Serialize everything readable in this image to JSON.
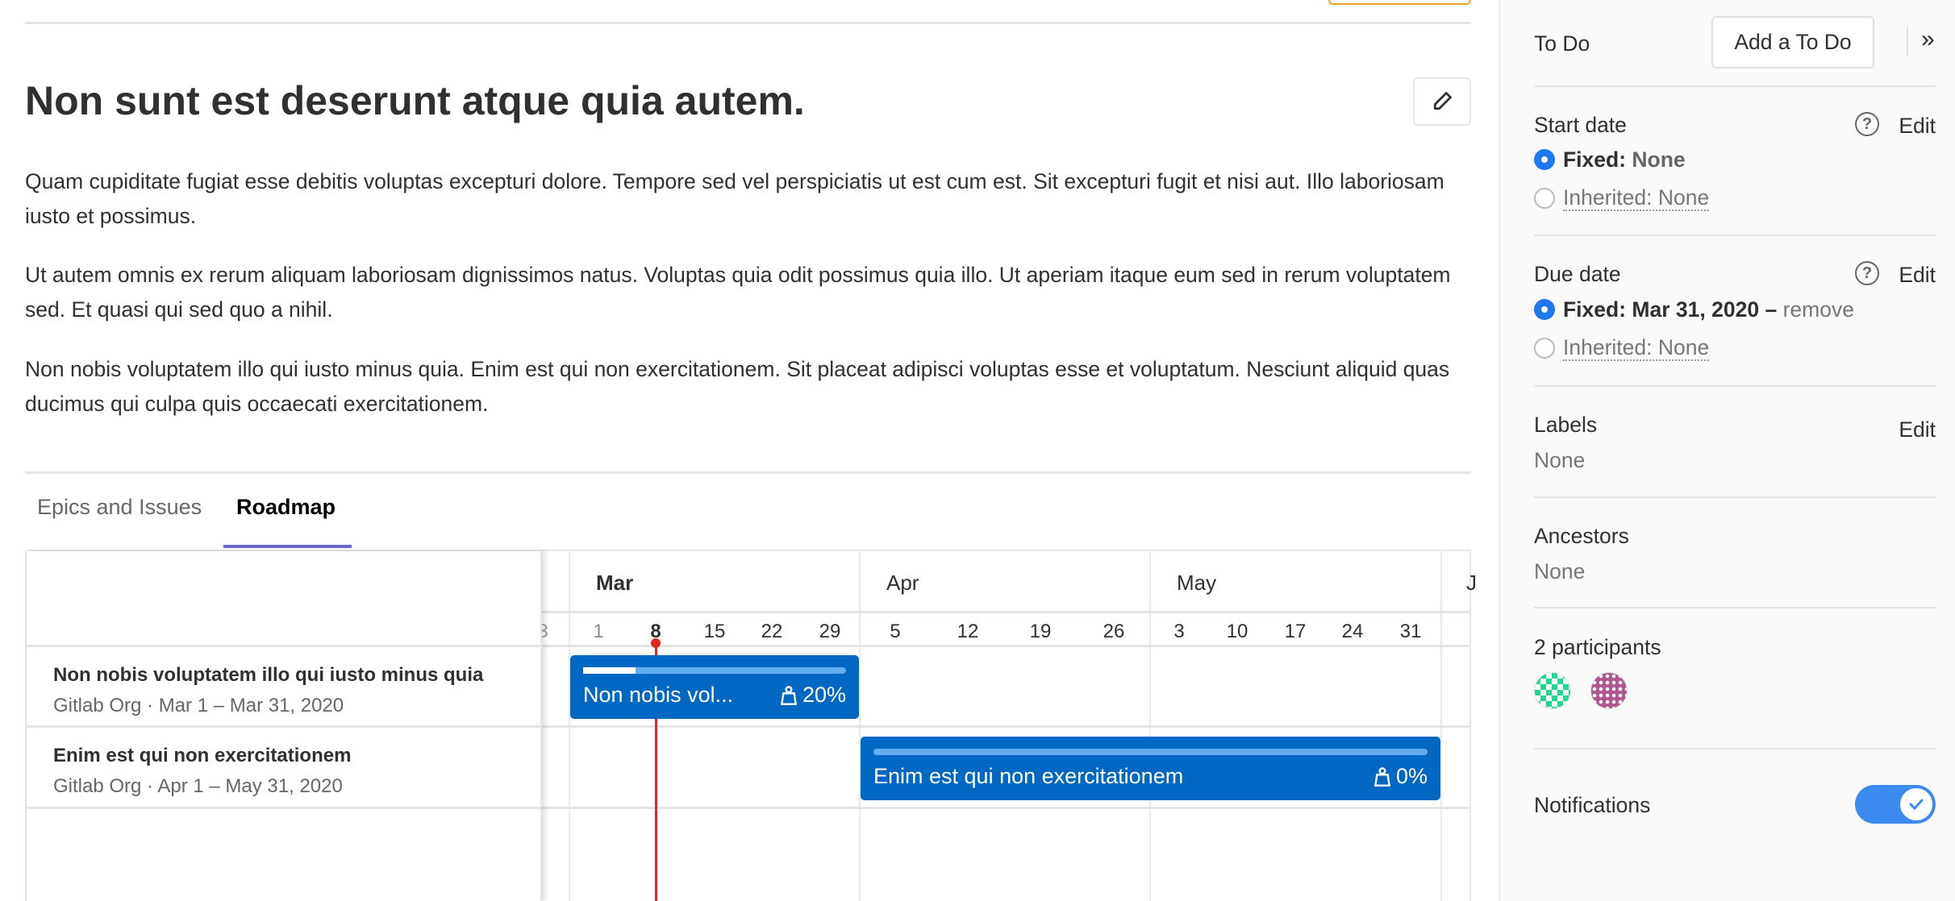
{
  "issue": {
    "title": "Non sunt est deserunt atque quia autem.",
    "paragraphs": [
      "Quam cupiditate fugiat esse debitis voluptas excepturi dolore. Tempore sed vel perspiciatis ut est cum est. Sit excepturi fugit et nisi aut. Illo laboriosam iusto et possimus.",
      "Ut autem omnis ex rerum aliquam laboriosam dignissimos natus. Voluptas quia odit possimus quia illo. Ut aperiam itaque eum sed in rerum voluptatem sed. Et quasi qui sed quo a nihil.",
      "Non nobis voluptatem illo qui iusto minus quia. Enim est qui non exercitationem. Sit placeat adipisci voluptas esse et voluptatum. Nesciunt aliquid quas ducimus qui culpa quis occaecati exercitationem."
    ]
  },
  "tabs": [
    {
      "label": "Epics and Issues",
      "active": false
    },
    {
      "label": "Roadmap",
      "active": true
    }
  ],
  "roadmap": {
    "months": [
      "Mar",
      "Apr",
      "May",
      "J"
    ],
    "days": {
      "prev": "3",
      "mar": [
        "1",
        "8",
        "15",
        "22",
        "29"
      ],
      "apr": [
        "5",
        "12",
        "19",
        "26"
      ],
      "may": [
        "3",
        "10",
        "17",
        "24",
        "31"
      ]
    },
    "items": [
      {
        "title": "Non nobis voluptatem illo qui iusto minus quia",
        "subtitle": "Gitlab Org · Mar 1 – Mar 31, 2020",
        "bar_label": "Non nobis vol...",
        "progress_label": "20%",
        "progress": 0.2
      },
      {
        "title": "Enim est qui non exercitationem",
        "subtitle": "Gitlab Org · Apr 1 – May 31, 2020",
        "bar_label": "Enim est qui non exercitationem",
        "progress_label": "0%",
        "progress": 0
      }
    ],
    "colors": {
      "bar": "#0068c2",
      "today": "#e0271f",
      "tab_active": "#6666cc"
    }
  },
  "sidebar": {
    "todo_label": "To Do",
    "add_todo": "Add a To Do",
    "collapse": "»",
    "start_date": {
      "label": "Start date",
      "edit": "Edit",
      "fixed_label": "Fixed:",
      "fixed_value": "None",
      "inherited": "Inherited: None"
    },
    "due_date": {
      "label": "Due date",
      "edit": "Edit",
      "fixed_label": "Fixed:",
      "fixed_value": "Mar 31, 2020",
      "remove": "remove",
      "inherited": "Inherited: None"
    },
    "labels": {
      "label": "Labels",
      "edit": "Edit",
      "value": "None"
    },
    "ancestors": {
      "label": "Ancestors",
      "value": "None"
    },
    "participants": {
      "label": "2 participants"
    },
    "notifications": {
      "label": "Notifications",
      "enabled": true
    }
  }
}
